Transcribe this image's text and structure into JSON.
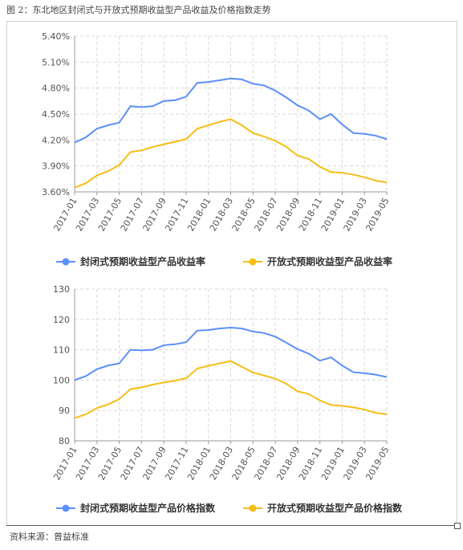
{
  "figure": {
    "title": "图 2：东北地区封闭式与开放式预期收益型产品收益及价格指数走势",
    "source": "资料来源：普益标准"
  },
  "colors": {
    "closed": "#5B8FF9",
    "open": "#F6BD16",
    "grid": "#d9d9d9",
    "axis": "#999999"
  },
  "chart_data": [
    {
      "type": "line",
      "title": "",
      "xlabel": "",
      "ylabel": "",
      "x": [
        "2017-01",
        "2017-02",
        "2017-03",
        "2017-04",
        "2017-05",
        "2017-06",
        "2017-07",
        "2017-08",
        "2017-09",
        "2017-10",
        "2017-11",
        "2017-12",
        "2018-01",
        "2018-02",
        "2018-03",
        "2018-04",
        "2018-05",
        "2018-06",
        "2018-07",
        "2018-08",
        "2018-09",
        "2018-10",
        "2018-11",
        "2018-12",
        "2019-01",
        "2019-02",
        "2019-03",
        "2019-04",
        "2019-05"
      ],
      "xticks": [
        "2017-01",
        "2017-03",
        "2017-05",
        "2017-07",
        "2017-09",
        "2017-11",
        "2018-01",
        "2018-03",
        "2018-05",
        "2018-07",
        "2018-09",
        "2018-11",
        "2019-01",
        "2019-03",
        "2019-05"
      ],
      "ylim": [
        3.6,
        5.4
      ],
      "yticks": [
        "3.60%",
        "3.90%",
        "4.20%",
        "4.50%",
        "4.80%",
        "5.10%",
        "5.40%"
      ],
      "grid": true,
      "legend_position": "bottom",
      "series": [
        {
          "name": "封闭式预期收益型产品收益率",
          "color_key": "closed",
          "values": [
            4.17,
            4.23,
            4.33,
            4.37,
            4.4,
            4.59,
            4.58,
            4.59,
            4.65,
            4.66,
            4.7,
            4.86,
            4.87,
            4.89,
            4.91,
            4.9,
            4.85,
            4.83,
            4.77,
            4.69,
            4.6,
            4.54,
            4.44,
            4.5,
            4.38,
            4.28,
            4.27,
            4.25,
            4.21
          ]
        },
        {
          "name": "开放式预期收益型产品收益率",
          "color_key": "open",
          "values": [
            3.65,
            3.7,
            3.79,
            3.84,
            3.91,
            4.06,
            4.08,
            4.12,
            4.15,
            4.18,
            4.21,
            4.33,
            4.37,
            4.41,
            4.44,
            4.37,
            4.28,
            4.24,
            4.19,
            4.12,
            4.02,
            3.98,
            3.89,
            3.83,
            3.82,
            3.8,
            3.77,
            3.73,
            3.71
          ]
        }
      ]
    },
    {
      "type": "line",
      "title": "",
      "xlabel": "",
      "ylabel": "",
      "x": [
        "2017-01",
        "2017-02",
        "2017-03",
        "2017-04",
        "2017-05",
        "2017-06",
        "2017-07",
        "2017-08",
        "2017-09",
        "2017-10",
        "2017-11",
        "2017-12",
        "2018-01",
        "2018-02",
        "2018-03",
        "2018-04",
        "2018-05",
        "2018-06",
        "2018-07",
        "2018-08",
        "2018-09",
        "2018-10",
        "2018-11",
        "2018-12",
        "2019-01",
        "2019-02",
        "2019-03",
        "2019-04",
        "2019-05"
      ],
      "xticks": [
        "2017-01",
        "2017-03",
        "2017-05",
        "2017-07",
        "2017-09",
        "2017-11",
        "2018-01",
        "2018-03",
        "2018-05",
        "2018-07",
        "2018-09",
        "2018-11",
        "2019-01",
        "2019-03",
        "2019-05"
      ],
      "ylim": [
        80,
        130
      ],
      "yticks": [
        "80",
        "90",
        "100",
        "110",
        "120",
        "130"
      ],
      "grid": true,
      "legend_position": "bottom",
      "series": [
        {
          "name": "封闭式预期收益型产品价格指数",
          "color_key": "closed",
          "values": [
            100,
            101.3,
            103.6,
            104.8,
            105.5,
            110,
            109.8,
            110,
            111.5,
            111.8,
            112.5,
            116.3,
            116.5,
            117.0,
            117.3,
            117.0,
            116.0,
            115.5,
            114.3,
            112.3,
            110.2,
            108.7,
            106.4,
            107.5,
            104.8,
            102.6,
            102.3,
            101.8,
            101.0
          ]
        },
        {
          "name": "开放式预期收益型产品价格指数",
          "color_key": "open",
          "values": [
            87.5,
            88.7,
            90.8,
            92.0,
            93.7,
            97.0,
            97.6,
            98.5,
            99.2,
            99.8,
            100.6,
            103.8,
            104.7,
            105.5,
            106.3,
            104.4,
            102.5,
            101.5,
            100.5,
            98.8,
            96.3,
            95.4,
            93.3,
            91.8,
            91.5,
            91.0,
            90.3,
            89.2,
            88.8
          ]
        }
      ]
    }
  ]
}
